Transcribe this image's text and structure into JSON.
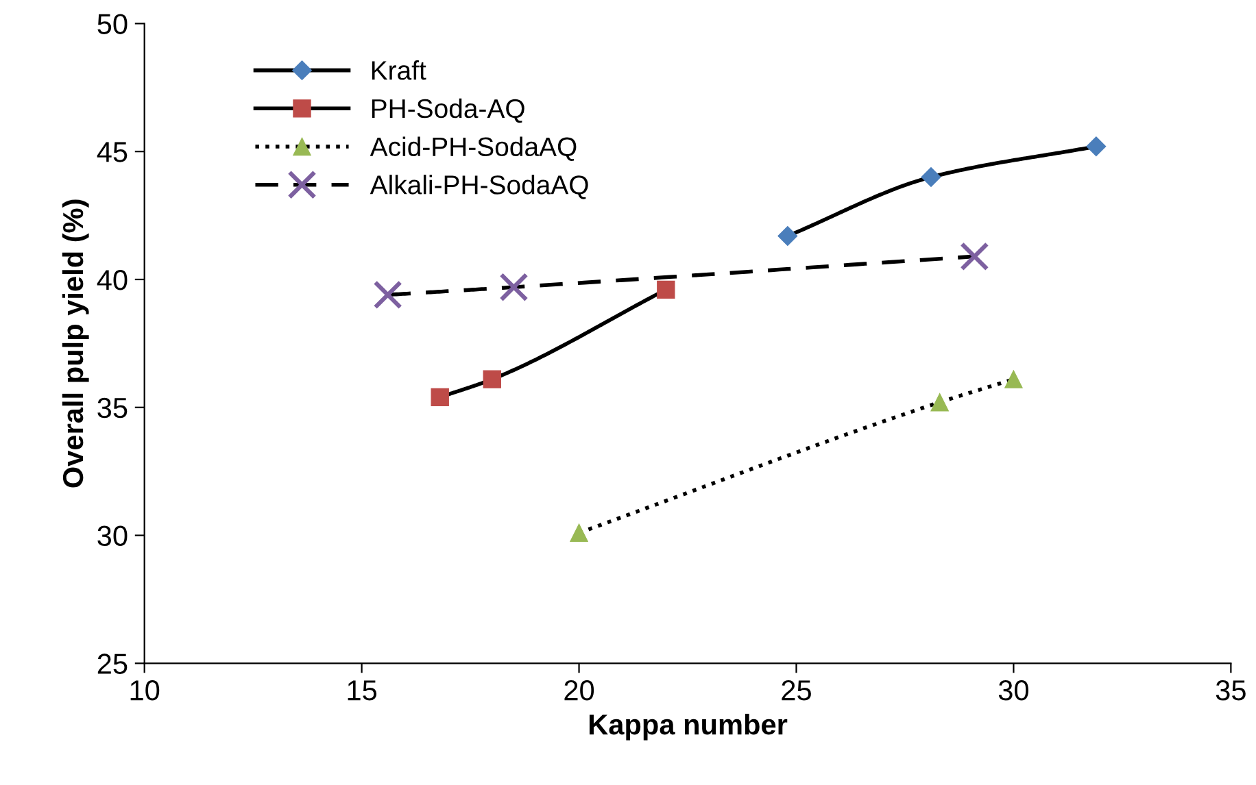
{
  "chart_data": {
    "type": "line",
    "xlabel": "Kappa number",
    "ylabel": "Overall pulp yield (%)",
    "xlim": [
      10,
      35
    ],
    "xticks": [
      10,
      15,
      20,
      25,
      30,
      35
    ],
    "ylim": [
      25,
      50
    ],
    "yticks": [
      25,
      30,
      35,
      40,
      45,
      50
    ],
    "grid": false,
    "legend": "top left",
    "series": [
      {
        "name": "Kraft",
        "color": "#4a7ebb",
        "marker": "diamond",
        "line_style": "solid",
        "x": [
          24.8,
          28.1,
          31.9
        ],
        "values": [
          41.7,
          44.0,
          45.2
        ]
      },
      {
        "name": "PH-Soda-AQ",
        "color": "#be4b48",
        "marker": "square",
        "line_style": "solid",
        "x": [
          16.8,
          18.0,
          22.0
        ],
        "values": [
          35.4,
          36.1,
          39.6
        ]
      },
      {
        "name": "Acid-PH-SodaAQ",
        "color": "#98b954",
        "marker": "triangle",
        "line_style": "dotted",
        "x": [
          20.0,
          28.3,
          30.0
        ],
        "values": [
          30.1,
          35.2,
          36.1
        ]
      },
      {
        "name": "Alkali-PH-SodaAQ",
        "color": "#7d60a0",
        "marker": "cross",
        "line_style": "dashed",
        "x": [
          15.6,
          18.5,
          29.1
        ],
        "values": [
          39.4,
          39.7,
          40.9
        ]
      }
    ]
  }
}
